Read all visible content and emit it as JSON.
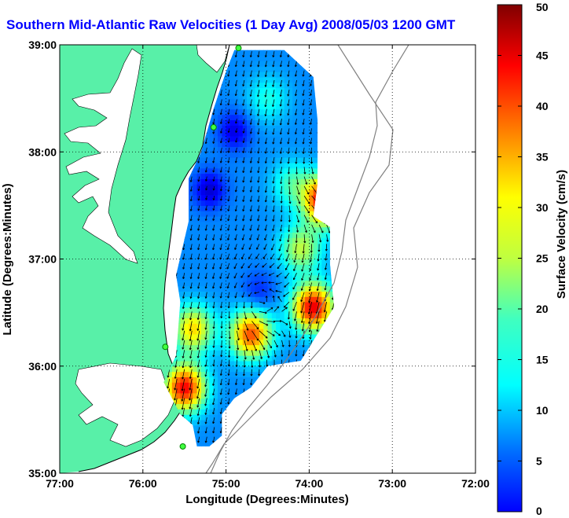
{
  "chart_data": {
    "type": "heatmap",
    "title": "Southern Mid-Atlantic Raw Velocities (1 Day Avg) 2008/05/03 1200 GMT",
    "xlabel": "Longitude (Degrees:Minutes)",
    "ylabel": "Latitude (Degrees:Minutes)",
    "colorbar_label": "Surface Velocity (cm/s)",
    "xlim": [
      -77,
      -72
    ],
    "ylim": [
      35,
      39
    ],
    "clim": [
      0,
      50
    ],
    "x_ticks": [
      "77:00",
      "76:00",
      "75:00",
      "74:00",
      "73:00",
      "72:00"
    ],
    "y_ticks": [
      "35:00",
      "36:00",
      "37:00",
      "38:00",
      "39:00"
    ],
    "colorbar_ticks": [
      "0",
      "5",
      "10",
      "15",
      "20",
      "25",
      "30",
      "35",
      "40",
      "45",
      "50"
    ],
    "grid": "dotted",
    "colormap": "jet",
    "land_color": "#58f0a8",
    "hotspots": [
      {
        "lon": -73.8,
        "lat": 37.55,
        "speed": 48
      },
      {
        "lon": -73.95,
        "lat": 36.55,
        "speed": 45
      },
      {
        "lon": -74.7,
        "lat": 36.3,
        "speed": 40
      },
      {
        "lon": -75.4,
        "lat": 36.35,
        "speed": 33
      },
      {
        "lon": -75.5,
        "lat": 35.8,
        "speed": 44
      },
      {
        "lon": -74.1,
        "lat": 37.1,
        "speed": 28
      },
      {
        "lon": -74.5,
        "lat": 38.5,
        "speed": 20
      },
      {
        "lon": -74.2,
        "lat": 37.7,
        "speed": 22
      }
    ],
    "calm_zones": [
      {
        "lon": -74.9,
        "lat": 38.2,
        "speed": 5
      },
      {
        "lon": -75.2,
        "lat": 37.65,
        "speed": 4
      },
      {
        "lon": -74.6,
        "lat": 36.7,
        "speed": 8
      }
    ],
    "stations": [
      {
        "lon": -74.85,
        "lat": 38.97
      },
      {
        "lon": -75.15,
        "lat": 38.23
      },
      {
        "lon": -75.73,
        "lat": 36.18
      },
      {
        "lon": -75.52,
        "lat": 35.25
      }
    ]
  }
}
